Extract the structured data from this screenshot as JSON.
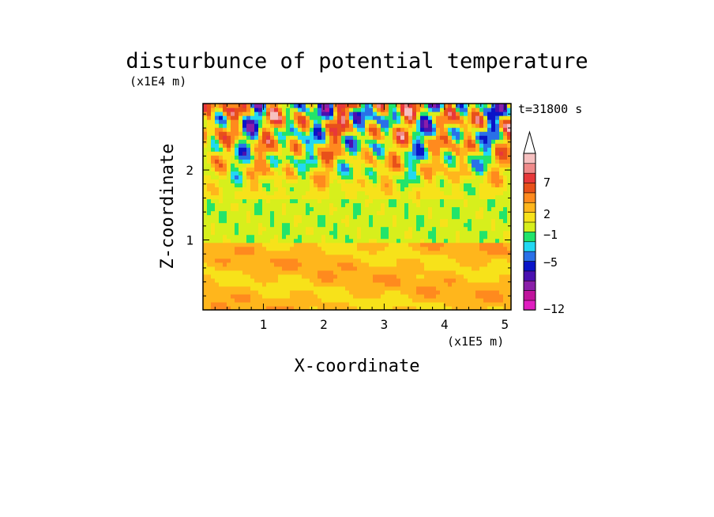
{
  "chart_data": {
    "type": "heatmap",
    "title": "disturbunce of potential temperature",
    "xlabel": "X-coordinate",
    "ylabel": "Z-coordinate",
    "x_unit": "(x1E5 m)",
    "y_unit": "(x1E4 m)",
    "time_label": "t=31800 s",
    "xlim": [
      0,
      5.1
    ],
    "ylim": [
      0,
      2.95
    ],
    "x_ticks": [
      "1",
      "2",
      "3",
      "4",
      "5"
    ],
    "y_ticks": [
      "1",
      "2"
    ],
    "colorbar": {
      "tick_labels": [
        "7",
        "2",
        "−1",
        "−5",
        "−12"
      ],
      "levels": [
        -12,
        -9,
        -7,
        -5,
        -4,
        -2,
        -1,
        0,
        1,
        2,
        3,
        5,
        7,
        8,
        9
      ],
      "colors": [
        "#e01ec0",
        "#c0149c",
        "#8a1fa8",
        "#4a10b0",
        "#0a14c8",
        "#2a70e8",
        "#22d8f2",
        "#22e46a",
        "#d7ef1c",
        "#f7e21a",
        "#ffb61c",
        "#ff8a1e",
        "#e8501a",
        "#e8383a",
        "#f08a8a",
        "#f6c0c0"
      ]
    },
    "z_rows": [
      {
        "z": 0.05,
        "band": "2"
      },
      {
        "z": 0.3,
        "band": "2"
      },
      {
        "z": 0.55,
        "band": "2"
      },
      {
        "z": 0.8,
        "band": "1"
      },
      {
        "z": 1.05,
        "band": "0"
      },
      {
        "z": 1.3,
        "band": "0"
      },
      {
        "z": 1.55,
        "band": "0"
      },
      {
        "z": 1.8,
        "band": "1"
      },
      {
        "z": 2.05,
        "band": "-2"
      },
      {
        "z": 2.3,
        "band": "1"
      },
      {
        "z": 2.55,
        "band": "-4"
      },
      {
        "z": 2.8,
        "band": "3"
      }
    ]
  }
}
